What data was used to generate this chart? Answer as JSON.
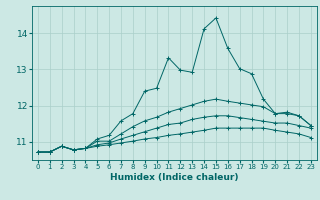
{
  "xlabel": "Humidex (Indice chaleur)",
  "bg_color": "#cce8e4",
  "grid_color": "#aacfca",
  "line_color": "#006666",
  "x_values": [
    0,
    1,
    2,
    3,
    4,
    5,
    6,
    7,
    8,
    9,
    10,
    11,
    12,
    13,
    14,
    15,
    16,
    17,
    18,
    19,
    20,
    21,
    22,
    23
  ],
  "series": [
    [
      10.72,
      10.72,
      10.88,
      10.78,
      10.82,
      11.08,
      11.18,
      11.58,
      11.78,
      12.4,
      12.48,
      13.32,
      12.98,
      12.92,
      14.12,
      14.42,
      13.58,
      13.02,
      12.88,
      12.18,
      11.78,
      11.82,
      11.72,
      11.45
    ],
    [
      10.72,
      10.72,
      10.88,
      10.78,
      10.82,
      11.02,
      11.02,
      11.22,
      11.42,
      11.58,
      11.68,
      11.82,
      11.92,
      12.02,
      12.12,
      12.18,
      12.12,
      12.07,
      12.02,
      11.97,
      11.78,
      11.78,
      11.72,
      11.45
    ],
    [
      10.72,
      10.72,
      10.88,
      10.78,
      10.82,
      10.92,
      10.97,
      11.08,
      11.18,
      11.28,
      11.38,
      11.48,
      11.52,
      11.62,
      11.68,
      11.72,
      11.72,
      11.67,
      11.62,
      11.57,
      11.52,
      11.52,
      11.45,
      11.38
    ],
    [
      10.72,
      10.72,
      10.88,
      10.78,
      10.82,
      10.88,
      10.92,
      10.97,
      11.02,
      11.08,
      11.12,
      11.18,
      11.22,
      11.27,
      11.32,
      11.38,
      11.38,
      11.38,
      11.38,
      11.38,
      11.32,
      11.27,
      11.22,
      11.12
    ]
  ],
  "ylim": [
    10.5,
    14.75
  ],
  "xlim": [
    -0.5,
    23.5
  ],
  "yticks": [
    11,
    12,
    13,
    14
  ],
  "xticks": [
    0,
    1,
    2,
    3,
    4,
    5,
    6,
    7,
    8,
    9,
    10,
    11,
    12,
    13,
    14,
    15,
    16,
    17,
    18,
    19,
    20,
    21,
    22,
    23
  ]
}
